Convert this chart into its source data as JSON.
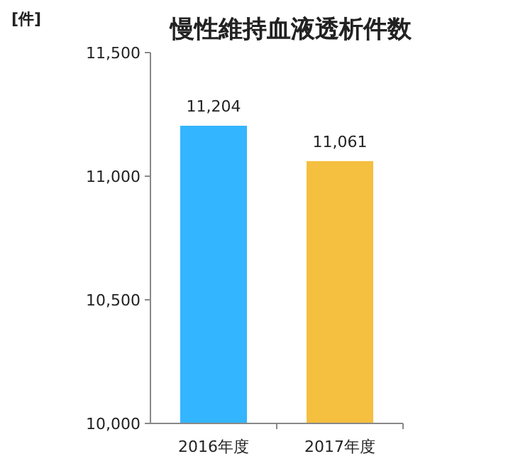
{
  "chart_data": {
    "type": "bar",
    "title": "慢性維持血液透析件数",
    "ylabel": "[件]",
    "categories": [
      "2016年度",
      "2017年度"
    ],
    "values": [
      11204,
      11061
    ],
    "colors": [
      "#33b5ff",
      "#f5bf3f"
    ],
    "value_labels": [
      "11,204",
      "11,061"
    ],
    "ylim": [
      10000,
      11500
    ],
    "yticks": [
      {
        "value": 10000,
        "label": "10,000"
      },
      {
        "value": 10500,
        "label": "10,500"
      },
      {
        "value": 11000,
        "label": "11,000"
      },
      {
        "value": 11500,
        "label": "11,500"
      }
    ],
    "grid": false
  }
}
